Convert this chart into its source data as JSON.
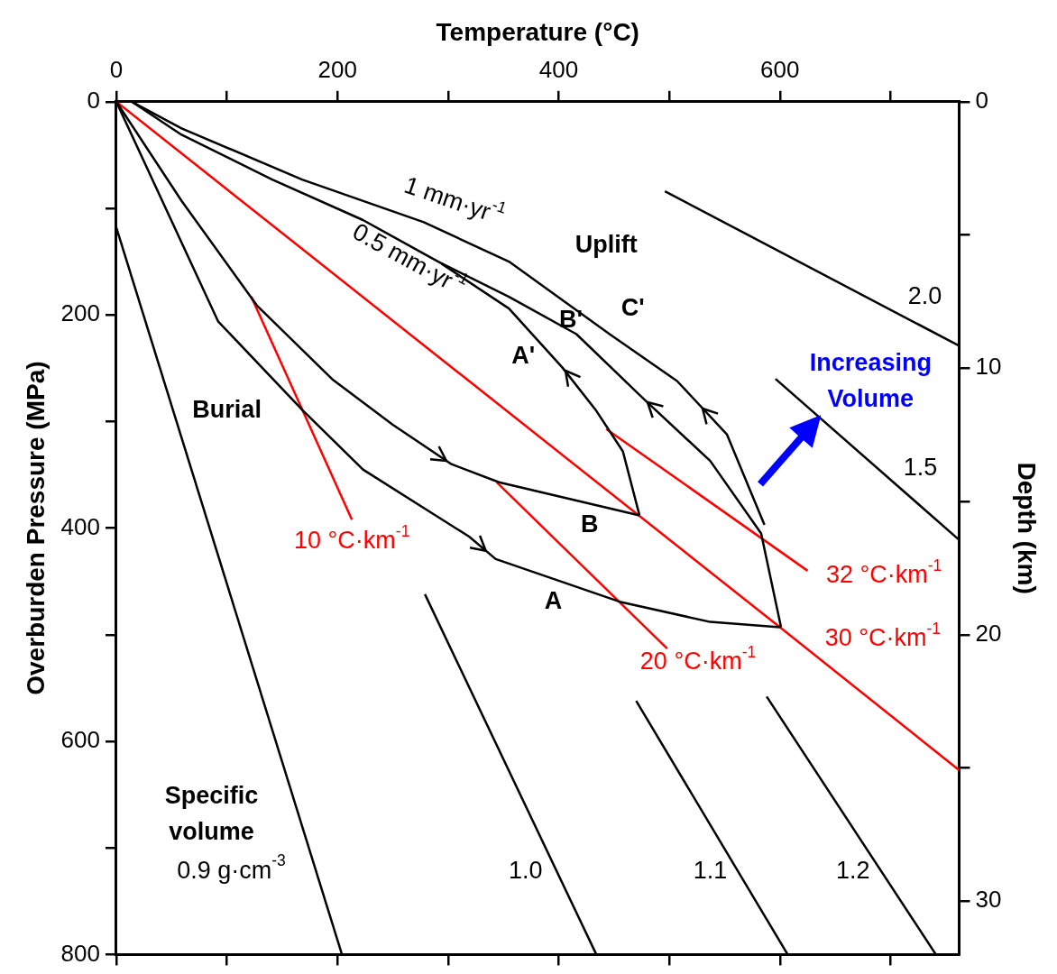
{
  "chart_data": {
    "type": "line",
    "xlabel": "Temperature (°C)",
    "ylabel": "Overburden Pressure (MPa)",
    "y2label": "Depth (km)",
    "xlim": [
      0,
      762
    ],
    "xticks": [
      0,
      {
        "value": 100,
        "label": null
      },
      200,
      {
        "value": 300,
        "label": null
      },
      400,
      {
        "value": 500,
        "label": null
      },
      600,
      {
        "value": 700,
        "label": null
      }
    ],
    "ylim": [
      800,
      0
    ],
    "yticks": [
      0,
      {
        "value": 100,
        "label": null
      },
      200,
      {
        "value": 300,
        "label": null
      },
      400,
      {
        "value": 500,
        "label": null
      },
      600,
      {
        "value": 700,
        "label": null
      },
      800
    ],
    "y2lim": [
      32,
      0
    ],
    "y2ticks": [
      0,
      {
        "value": 5,
        "label": null
      },
      10,
      {
        "value": 15,
        "label": null
      },
      20,
      {
        "value": 25,
        "label": null
      },
      30
    ],
    "grid": false,
    "series": [
      {
        "type": "line",
        "name": "A",
        "color": "#000000",
        "x": [
          0,
          92,
          168,
          223,
          319,
          343,
          455,
          537,
          600
        ],
        "values": [
          0,
          206,
          289,
          345,
          408,
          429,
          469,
          488,
          493
        ]
      },
      {
        "type": "line",
        "name": "B",
        "color": "#000000",
        "x": [
          0,
          59,
          127,
          196,
          250,
          303,
          346,
          473
        ],
        "values": [
          0,
          93,
          191,
          261,
          303,
          340,
          357,
          388
        ]
      },
      {
        "type": "line",
        "name": "A'",
        "color": "#000000",
        "x": [
          473,
          458,
          434,
          403,
          355,
          294
        ],
        "values": [
          388,
          328,
          290,
          249,
          194,
          152
        ]
      },
      {
        "type": "line",
        "name": "B'",
        "color": "#000000",
        "x": [
          601,
          583,
          537,
          476,
          416,
          355,
          291,
          223,
          141,
          59,
          14
        ],
        "values": [
          493,
          405,
          337,
          278,
          218,
          183,
          150,
          111,
          73,
          31,
          0
        ]
      },
      {
        "type": "line",
        "name": "C'",
        "color": "#000000",
        "x": [
          586,
          552,
          507,
          446,
          355,
          278,
          168,
          59,
          14
        ],
        "values": [
          397,
          312,
          262,
          218,
          150,
          113,
          73,
          25,
          0
        ]
      },
      {
        "type": "line",
        "name": "0.9 g·cm$^{-3}$",
        "color": "#000000",
        "x": [
          0,
          204
        ],
        "values": [
          118,
          800
        ]
      },
      {
        "type": "line",
        "name": "1.0",
        "color": "#000000",
        "x": [
          279,
          434
        ],
        "values": [
          462,
          800
        ]
      },
      {
        "type": "line",
        "name": "1.1",
        "color": "#000000",
        "x": [
          470,
          607
        ],
        "values": [
          562,
          800
        ]
      },
      {
        "type": "line",
        "name": "1.2",
        "color": "#000000",
        "x": [
          588,
          741
        ],
        "values": [
          558,
          800
        ]
      },
      {
        "type": "line",
        "name": "1.5",
        "color": "#000000",
        "x": [
          596,
          762
        ],
        "values": [
          260,
          411
        ]
      },
      {
        "type": "line",
        "name": "2.0",
        "color": "#000000",
        "x": [
          496,
          762
        ],
        "values": [
          84,
          229
        ]
      },
      {
        "type": "line",
        "name": "10 °C·km$^{-1}$",
        "color": "#ff0000",
        "x": [
          122,
          213
        ],
        "values": [
          183,
          392
        ]
      },
      {
        "type": "line",
        "name": "20 °C·km$^{-1}$",
        "color": "#ff0000",
        "x": [
          344,
          498
        ],
        "values": [
          357,
          513
        ]
      },
      {
        "type": "line",
        "name": "32 °C·km$^{-1}$",
        "color": "#ff0000",
        "x": [
          443,
          625
        ],
        "values": [
          307,
          440
        ]
      },
      {
        "type": "line",
        "name": "30 °C·km$^{-1}$",
        "color": "#ff0000",
        "x": [
          0,
          600,
          762
        ],
        "values": [
          0,
          493,
          627
        ]
      }
    ],
    "annotations": [
      "1 mm·yr$^{-1}$",
      "0.5 mm·yr$^{-1}$",
      "Uplift",
      "Burial",
      "Specific\nvolume",
      "Increasing\nVolume"
    ]
  }
}
